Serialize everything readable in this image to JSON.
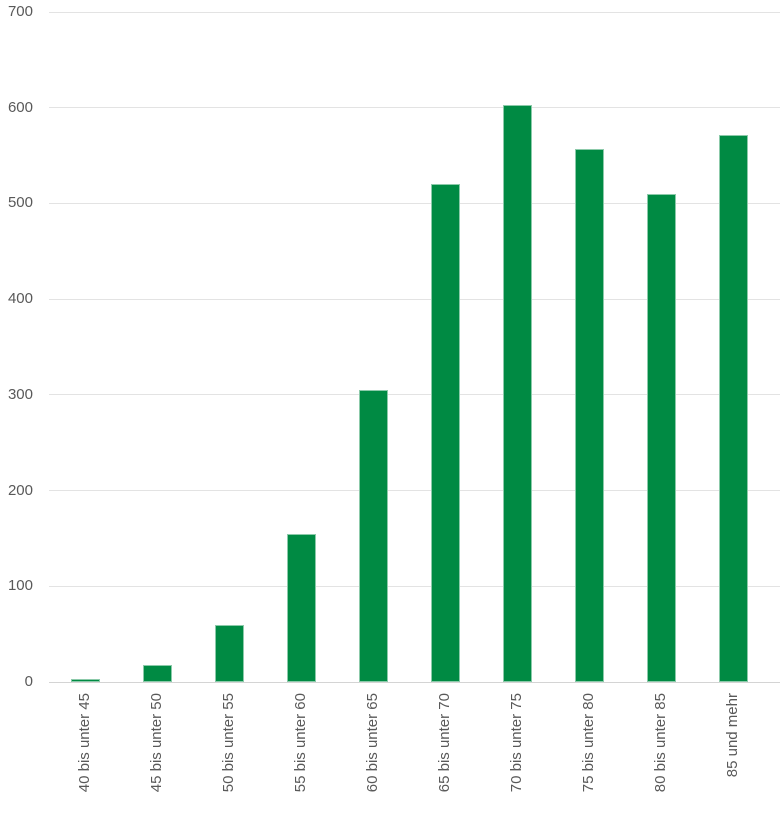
{
  "chart_data": {
    "type": "bar",
    "title": "",
    "xlabel": "",
    "ylabel": "",
    "categories": [
      "40 bis unter 45",
      "45 bis unter 50",
      "50 bis unter 55",
      "55 bis unter 60",
      "60 bis unter 65",
      "65 bis unter 70",
      "70 bis unter 75",
      "75 bis unter 80",
      "80 bis unter 85",
      "85 und mehr"
    ],
    "values": [
      3,
      18,
      60,
      155,
      305,
      520,
      603,
      557,
      510,
      572
    ],
    "ylim": [
      0,
      700
    ],
    "ytick_interval": 100,
    "ytick_labels": [
      "0",
      "100",
      "200",
      "300",
      "400",
      "500",
      "600",
      "700"
    ],
    "grid": true,
    "legend": false,
    "bar_color": "#008A43",
    "gridline_color": "#e3e3e3",
    "axis_line_color": "#d4d4d4",
    "text_color": "#595959"
  }
}
